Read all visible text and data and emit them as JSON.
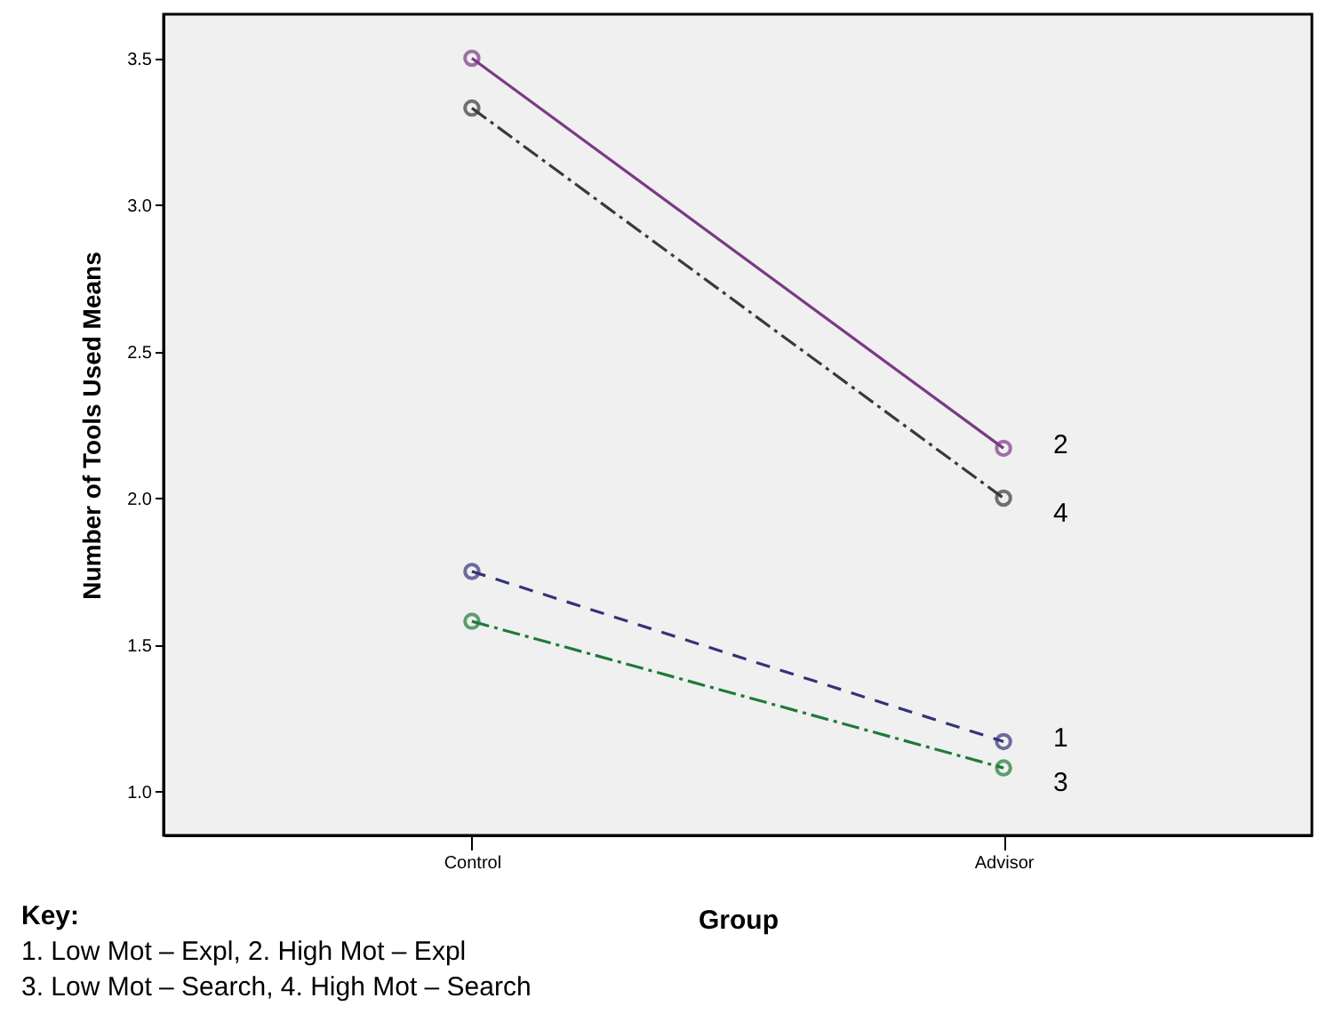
{
  "chart_data": {
    "type": "line",
    "xlabel": "Group",
    "ylabel": "Number of Tools Used Means",
    "categories": [
      "Control",
      "Advisor"
    ],
    "series": [
      {
        "name": "1",
        "color": "#33337a",
        "values": [
          1.75,
          1.17
        ],
        "line_style": "dashed"
      },
      {
        "name": "2",
        "color": "#7a3a85",
        "values": [
          3.5,
          2.17
        ],
        "line_style": "solid"
      },
      {
        "name": "3",
        "color": "#1f7a3a",
        "values": [
          1.58,
          1.08
        ],
        "line_style": "dotted"
      },
      {
        "name": "4",
        "color": "#3a3a3a",
        "values": [
          3.33,
          2.0
        ],
        "line_style": "dotted"
      }
    ],
    "ylim": [
      0.85,
      3.65
    ],
    "yticks": [
      {
        "value": 1,
        "label": "1.0"
      },
      1.5,
      {
        "value": 2,
        "label": "2.0"
      },
      2.5,
      {
        "value": 3,
        "label": "3.0"
      },
      3.5
    ],
    "grid": false,
    "marker": "circle",
    "annotations": [
      "Key:",
      "1. Low Mot – Expl, 2. High Mot – Expl",
      "3. Low Mot – Search, 4. High Mot – Search"
    ]
  }
}
